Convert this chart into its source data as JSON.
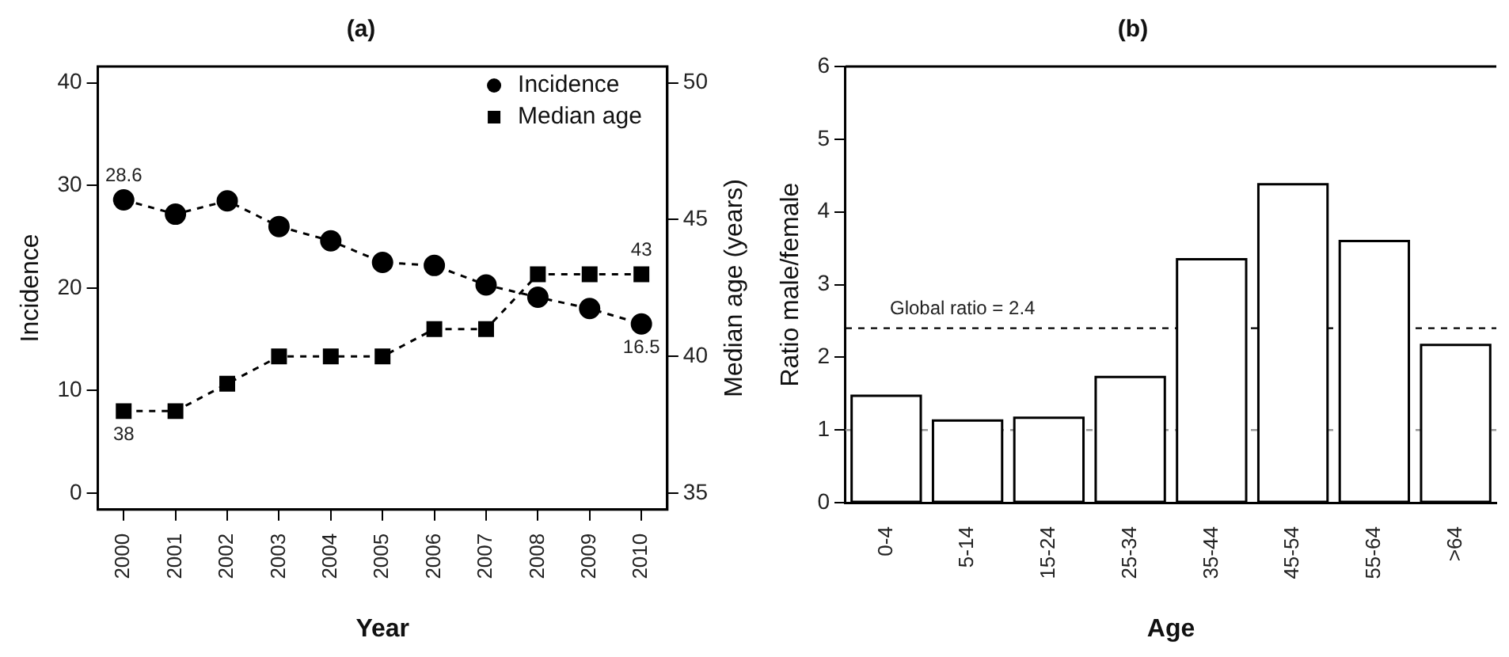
{
  "chart_data": [
    {
      "type": "line",
      "title": "(a)",
      "xlabel": "Year",
      "ylabel": "Incidence",
      "y2label": "Median age (years)",
      "categories": [
        "2000",
        "2001",
        "2002",
        "2003",
        "2004",
        "2005",
        "2006",
        "2007",
        "2008",
        "2009",
        "2010"
      ],
      "series": [
        {
          "name": "Incidence",
          "color": "#000000",
          "marker": "circle",
          "values": [
            28.6,
            27.2,
            28.5,
            26.0,
            24.6,
            22.5,
            22.2,
            20.3,
            19.1,
            18.0,
            16.5
          ],
          "value_labels": [
            "28.6",
            null,
            null,
            null,
            null,
            null,
            null,
            null,
            null,
            null,
            "16.5"
          ]
        },
        {
          "name": "Median age",
          "color": "#000000",
          "marker": "square",
          "axis": "y2",
          "values": [
            38,
            38,
            39,
            40,
            40,
            40,
            41,
            41,
            43,
            43,
            43
          ],
          "value_labels": [
            "38",
            null,
            null,
            null,
            null,
            null,
            null,
            null,
            null,
            null,
            "43"
          ]
        }
      ],
      "ylim": [
        -1.6,
        41.6
      ],
      "yticks": [
        0,
        10,
        20,
        30,
        40
      ],
      "y2lim": [
        34.4,
        50.6
      ],
      "y2ticks": [
        35,
        40,
        45,
        50
      ],
      "legend": "top right",
      "line_style": "dashed",
      "grid": false
    },
    {
      "type": "bar",
      "title": "(b)",
      "xlabel": "Age",
      "ylabel": "Ratio male/female",
      "categories": [
        "0-4",
        "5-14",
        "15-24",
        "25-34",
        "35-44",
        "45-54",
        "55-64",
        ">64"
      ],
      "values": [
        1.47,
        1.13,
        1.17,
        1.73,
        3.35,
        4.38,
        3.6,
        2.17
      ],
      "color": "#ffffff",
      "ylim": [
        0,
        6
      ],
      "yticks": [
        0,
        1,
        2,
        3,
        4,
        5,
        6
      ],
      "grid": false,
      "legend": false,
      "ref_lines": [
        {
          "axis": "y",
          "value": 2.4,
          "label": "Global ratio = 2.4",
          "color": "#000000",
          "line_style": "dashed"
        },
        {
          "axis": "y",
          "value": 1,
          "color": "#999999",
          "line_style": "dashed"
        }
      ]
    }
  ]
}
